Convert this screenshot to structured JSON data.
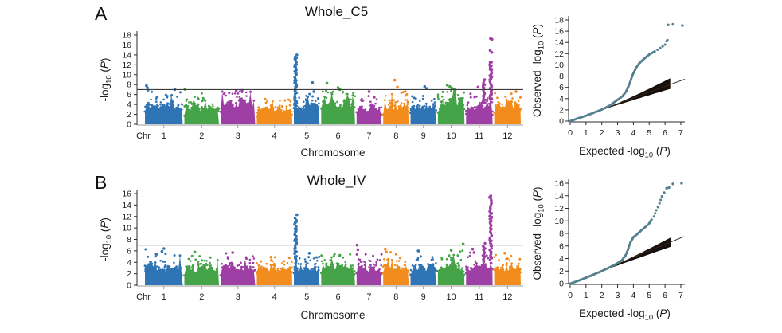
{
  "figure": {
    "background": "#ffffff"
  },
  "colors": {
    "chr_cycle": [
      "#2f74b4",
      "#45a348",
      "#9e3fa5",
      "#f18c1d"
    ],
    "qq_curve": "#52808f",
    "envelope": "#15100c",
    "diagonal": "#3a241c",
    "axis": "#2b2b2b",
    "axis_light": "#9a9a9a",
    "text": "#1b1b1b"
  },
  "chart_data": [
    {
      "panel": "A",
      "title": "Whole_C5",
      "manhattan": {
        "type": "scatter",
        "subtype": "manhattan",
        "xlabel": "Chromosome",
        "ylabel": "-log10 (P)",
        "x_axis_prefix": "Chr",
        "ylim": [
          0,
          18
        ],
        "yticks": [
          0,
          2,
          4,
          6,
          8,
          10,
          12,
          14,
          16,
          18
        ],
        "threshold": 7,
        "threshold_color": "#3c3c3c",
        "categories": [
          "1",
          "2",
          "3",
          "4",
          "5",
          "6",
          "7",
          "8",
          "9",
          "10",
          "11",
          "12"
        ],
        "chr_rel_widths": [
          47,
          43,
          43,
          44,
          32,
          42,
          31,
          32,
          32,
          33,
          33,
          33
        ],
        "mass_height": [
          5.4,
          4.9,
          6.2,
          4.5,
          5.0,
          6.0,
          4.7,
          5.3,
          5.0,
          6.2,
          5.2,
          5.4
        ],
        "scatter_max": [
          6.8,
          6.3,
          6.6,
          5.5,
          6.5,
          7.0,
          6.2,
          6.8,
          6.6,
          7.2,
          6.6,
          6.6
        ],
        "notable_points": [
          [
            1,
            0.04,
            7.8
          ],
          [
            1,
            0.06,
            7.4
          ],
          [
            1,
            0.08,
            6.9
          ],
          [
            1,
            0.79,
            7.0
          ],
          [
            2,
            0.02,
            7.05
          ],
          [
            3,
            0.45,
            6.8
          ],
          [
            3,
            0.62,
            6.85
          ],
          [
            5,
            0.72,
            8.4
          ],
          [
            5,
            0.78,
            6.6
          ],
          [
            6,
            0.17,
            8.3
          ],
          [
            6,
            0.5,
            7.4
          ],
          [
            6,
            0.55,
            7.0
          ],
          [
            7,
            0.5,
            6.6
          ],
          [
            8,
            0.45,
            8.9
          ],
          [
            8,
            0.55,
            7.5
          ],
          [
            9,
            0.55,
            7.6
          ],
          [
            9,
            0.62,
            7.2
          ],
          [
            10,
            0.35,
            7.9
          ],
          [
            10,
            0.45,
            7.6
          ],
          [
            10,
            0.52,
            7.3
          ],
          [
            10,
            0.62,
            7.0
          ],
          [
            11,
            0.45,
            7.5
          ],
          [
            12,
            0.82,
            6.6
          ]
        ],
        "peak_columns": [
          {
            "chr": 5,
            "pos": 0.07,
            "from": 3.5,
            "to": 13.5,
            "top_points": [
              14.0
            ]
          },
          {
            "chr": 11,
            "pos": 0.93,
            "from": 5.0,
            "to": 12.6,
            "top_points": [
              14.5,
              14.9,
              17.15,
              17.3
            ]
          },
          {
            "chr": 11,
            "pos": 0.68,
            "from": 4.5,
            "to": 8.6,
            "top_points": [
              9.0
            ]
          }
        ]
      },
      "qq": {
        "type": "scatter",
        "subtype": "qq",
        "xlabel": "Expected -log10 (P)",
        "ylabel": "Observed -log10 (P)",
        "xlim": [
          0,
          7
        ],
        "ylim": [
          0,
          18
        ],
        "xticks": [
          0,
          1,
          2,
          3,
          4,
          5,
          6,
          7
        ],
        "yticks": [
          0,
          2,
          4,
          6,
          8,
          10,
          12,
          14,
          16,
          18
        ],
        "curve": [
          [
            0,
            0
          ],
          [
            0.5,
            0.5
          ],
          [
            1,
            0.95
          ],
          [
            1.5,
            1.5
          ],
          [
            2,
            2.05
          ],
          [
            2.5,
            2.75
          ],
          [
            3,
            3.8
          ],
          [
            3.3,
            4.4
          ],
          [
            3.55,
            5.3
          ],
          [
            3.75,
            6.6
          ],
          [
            3.95,
            8.2
          ],
          [
            4.15,
            9.4
          ],
          [
            4.35,
            10.2
          ],
          [
            4.6,
            10.9
          ],
          [
            5,
            11.85
          ],
          [
            5.35,
            12.4
          ],
          [
            5.7,
            13.0
          ],
          [
            6,
            13.6
          ],
          [
            6.1,
            14.2
          ]
        ],
        "sparse_from": 5.2,
        "outliers": [
          [
            6.15,
            14.4
          ],
          [
            6.2,
            17.1
          ],
          [
            6.5,
            17.2
          ],
          [
            7.1,
            17.0
          ]
        ],
        "envelope": {
          "x_start": 1.7,
          "x_end": 6.33,
          "upper": 1.3,
          "lower": 0.6
        },
        "diagonal_end": [
          7.25,
          7.45
        ]
      }
    },
    {
      "panel": "B",
      "title": "Whole_IV",
      "manhattan": {
        "type": "scatter",
        "subtype": "manhattan",
        "xlabel": "Chromosome",
        "ylabel": "-log10 (P)",
        "x_axis_prefix": "Chr",
        "ylim": [
          0,
          16
        ],
        "yticks": [
          0,
          2,
          4,
          6,
          8,
          10,
          12,
          14,
          16
        ],
        "threshold": 7,
        "threshold_color": "#8f8f8f",
        "categories": [
          "1",
          "2",
          "3",
          "4",
          "5",
          "6",
          "7",
          "8",
          "9",
          "10",
          "11",
          "12"
        ],
        "chr_rel_widths": [
          47,
          43,
          43,
          44,
          32,
          42,
          31,
          32,
          32,
          33,
          33,
          33
        ],
        "mass_height": [
          4.6,
          4.2,
          4.5,
          4.1,
          4.4,
          4.5,
          4.2,
          4.3,
          4.4,
          4.6,
          4.7,
          4.5
        ],
        "scatter_max": [
          6.4,
          5.9,
          5.6,
          4.9,
          5.6,
          6.0,
          5.4,
          6.3,
          6.1,
          6.2,
          5.8,
          5.6
        ],
        "notable_points": [
          [
            1,
            0.3,
            5.4
          ],
          [
            1,
            0.45,
            5.9
          ],
          [
            1,
            0.5,
            6.4
          ],
          [
            2,
            0.3,
            5.8
          ],
          [
            3,
            0.35,
            5.7
          ],
          [
            4,
            0.4,
            4.9
          ],
          [
            5,
            0.6,
            5.6
          ],
          [
            6,
            0.55,
            5.2
          ],
          [
            7,
            0.02,
            7.0
          ],
          [
            7,
            0.05,
            6.2
          ],
          [
            8,
            0.08,
            6.3
          ],
          [
            8,
            0.12,
            5.8
          ],
          [
            9,
            0.3,
            6.0
          ],
          [
            10,
            0.95,
            7.2
          ],
          [
            10,
            0.5,
            6.1
          ],
          [
            11,
            0.25,
            6.3
          ],
          [
            11,
            0.3,
            5.7
          ],
          [
            12,
            0.4,
            5.6
          ]
        ],
        "peak_columns": [
          {
            "chr": 5,
            "pos": 0.07,
            "from": 3.8,
            "to": 11.7,
            "top_points": [
              12.3
            ]
          },
          {
            "chr": 11,
            "pos": 0.93,
            "from": 4.5,
            "to": 13.5,
            "top_points": [
              13.9,
              14.3,
              14.8,
              15.2,
              15.35,
              15.6
            ]
          },
          {
            "chr": 11,
            "pos": 0.68,
            "from": 4.2,
            "to": 7.2,
            "top_points": []
          }
        ]
      },
      "qq": {
        "type": "scatter",
        "subtype": "qq",
        "xlabel": "Expected -log10 (P)",
        "ylabel": "Observed -log10 (P)",
        "xlim": [
          0,
          7
        ],
        "ylim": [
          0,
          16
        ],
        "xticks": [
          0,
          1,
          2,
          3,
          4,
          5,
          6,
          7
        ],
        "yticks": [
          0,
          2,
          4,
          6,
          8,
          10,
          12,
          14,
          16
        ],
        "curve": [
          [
            0,
            0
          ],
          [
            0.5,
            0.45
          ],
          [
            1,
            0.93
          ],
          [
            1.5,
            1.45
          ],
          [
            2,
            2.0
          ],
          [
            2.5,
            2.6
          ],
          [
            3,
            3.26
          ],
          [
            3.3,
            3.8
          ],
          [
            3.5,
            4.5
          ],
          [
            3.65,
            5.4
          ],
          [
            3.8,
            6.5
          ],
          [
            4,
            7.4
          ],
          [
            4.25,
            7.9
          ],
          [
            4.5,
            8.5
          ],
          [
            4.75,
            9.0
          ],
          [
            5,
            9.6
          ],
          [
            5.15,
            10.2
          ],
          [
            5.3,
            10.7
          ],
          [
            5.45,
            11.7
          ],
          [
            5.55,
            12.2
          ],
          [
            5.65,
            12.8
          ],
          [
            5.8,
            13.9
          ],
          [
            5.95,
            14.5
          ]
        ],
        "sparse_from": 5.1,
        "outliers": [
          [
            6.1,
            15.2
          ],
          [
            6.25,
            15.3
          ],
          [
            6.5,
            15.9
          ],
          [
            7.05,
            16.0
          ]
        ],
        "envelope": {
          "x_start": 1.7,
          "x_end": 6.4,
          "upper": 1.0,
          "lower": 0.5
        },
        "diagonal_end": [
          7.2,
          7.5
        ]
      }
    }
  ]
}
